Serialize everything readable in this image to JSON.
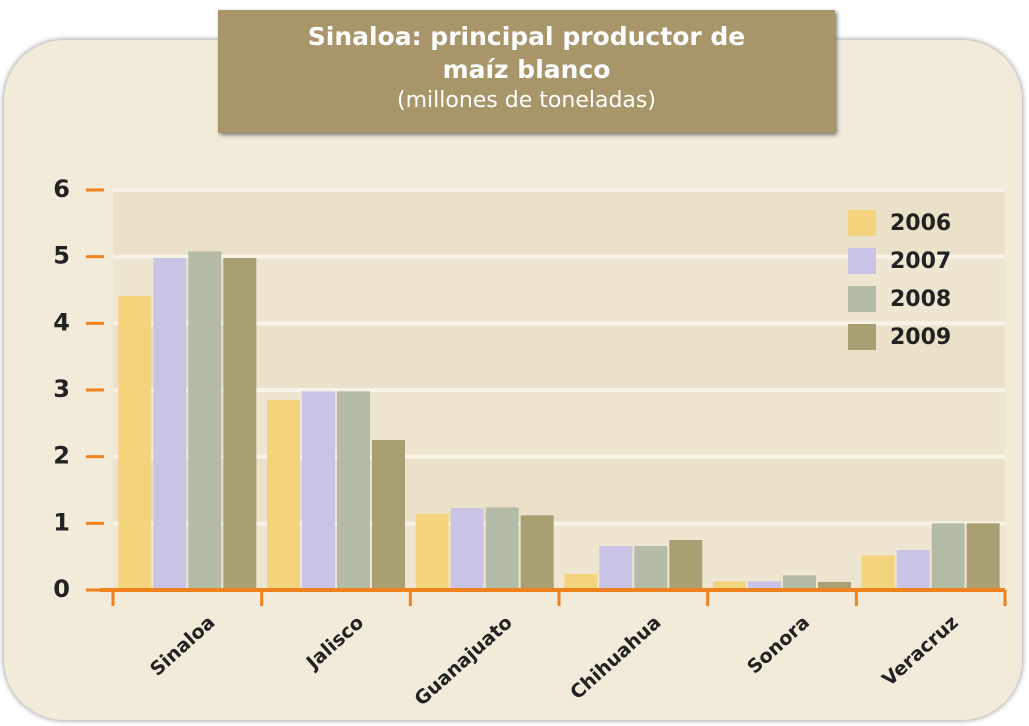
{
  "chart_data": {
    "type": "bar",
    "title": "Sinaloa: principal productor de maíz blanco",
    "subtitle": "(millones de toneladas)",
    "categories": [
      "Sinaloa",
      "Jalisco",
      "Guanajuato",
      "Chihuahua",
      "Sonora",
      "Veracruz"
    ],
    "series": [
      {
        "name": "2006",
        "color": "#f3d47c",
        "values": [
          4.41,
          2.85,
          1.14,
          0.24,
          0.13,
          0.52
        ]
      },
      {
        "name": "2007",
        "color": "#c9c4e6",
        "values": [
          4.98,
          2.98,
          1.23,
          0.66,
          0.13,
          0.6
        ]
      },
      {
        "name": "2008",
        "color": "#b4bba6",
        "values": [
          5.08,
          2.98,
          1.24,
          0.66,
          0.22,
          1.0
        ]
      },
      {
        "name": "2009",
        "color": "#a89f72",
        "values": [
          4.98,
          2.25,
          1.12,
          0.75,
          0.12,
          1.0
        ]
      }
    ],
    "ylim": [
      0,
      6
    ],
    "yticks": [
      0,
      1,
      2,
      3,
      4,
      5,
      6
    ],
    "grid": true,
    "legend": "top-right"
  }
}
